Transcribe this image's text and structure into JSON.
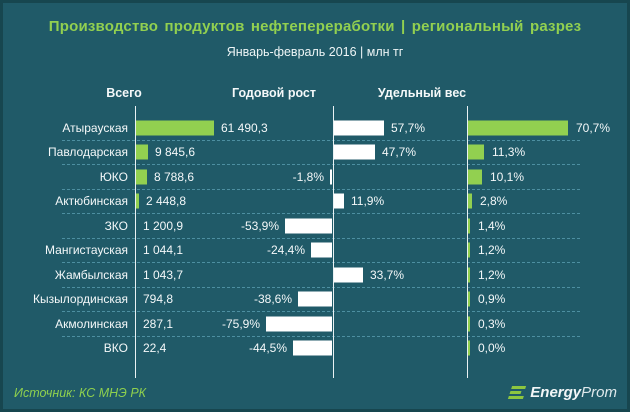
{
  "title": "Производство продуктов нефтепереработки | региональный разрез",
  "subtitle": "Январь-февраль 2016 | млн тг",
  "columns": {
    "total": "Всего",
    "growth": "Годовой рост",
    "share": "Удельный вес"
  },
  "regions": [
    {
      "name": "Атырауская",
      "total": "61 490,3",
      "total_value": 61490.3,
      "growth": "57,7%",
      "growth_value": 57.7,
      "share": "70,7%",
      "share_value": 70.7
    },
    {
      "name": "Павлодарская",
      "total": "9 845,6",
      "total_value": 9845.6,
      "growth": "47,7%",
      "growth_value": 47.7,
      "share": "11,3%",
      "share_value": 11.3
    },
    {
      "name": "ЮКО",
      "total": "8 788,6",
      "total_value": 8788.6,
      "growth": "-1,8%",
      "growth_value": -1.8,
      "share": "10,1%",
      "share_value": 10.1
    },
    {
      "name": "Актюбинская",
      "total": "2 448,8",
      "total_value": 2448.8,
      "growth": "11,9%",
      "growth_value": 11.9,
      "share": "2,8%",
      "share_value": 2.8
    },
    {
      "name": "ЗКО",
      "total": "1 200,9",
      "total_value": 1200.9,
      "growth": "-53,9%",
      "growth_value": -53.9,
      "share": "1,4%",
      "share_value": 1.4
    },
    {
      "name": "Мангистауская",
      "total": "1 044,1",
      "total_value": 1044.1,
      "growth": "-24,4%",
      "growth_value": -24.4,
      "share": "1,2%",
      "share_value": 1.2
    },
    {
      "name": "Жамбылская",
      "total": "1 043,7",
      "total_value": 1043.7,
      "growth": "33,7%",
      "growth_value": 33.7,
      "share": "1,2%",
      "share_value": 1.2
    },
    {
      "name": "Кызылординская",
      "total": "794,8",
      "total_value": 794.8,
      "growth": "-38,6%",
      "growth_value": -38.6,
      "share": "0,9%",
      "share_value": 0.9
    },
    {
      "name": "Акмолинская",
      "total": "287,1",
      "total_value": 287.1,
      "growth": "-75,9%",
      "growth_value": -75.9,
      "share": "0,3%",
      "share_value": 0.3
    },
    {
      "name": "ВКО",
      "total": "22,4",
      "total_value": 22.4,
      "growth": "-44,5%",
      "growth_value": -44.5,
      "share": "0,0%",
      "share_value": 0.0
    }
  ],
  "footer": {
    "source": "Источник: КС МНЭ РК",
    "logo_energy": "Energy",
    "logo_prom": "Prom"
  },
  "colors": {
    "background": "#205a68",
    "frame": "#17464f",
    "bar_green": "#92d050",
    "bar_white": "#ffffff",
    "title_green": "#92d050",
    "text": "#f4f8f9",
    "dashed_line": "#4d8fa1",
    "logo_green": "#8dc63f"
  },
  "chart_data": {
    "type": "bar",
    "orientation": "horizontal",
    "title": "Производство продуктов нефтепереработки | региональный разрез",
    "subtitle": "Январь-февраль 2016 | млн тг",
    "unit": "млн тг",
    "categories": [
      "Атырауская",
      "Павлодарская",
      "ЮКО",
      "Актюбинская",
      "ЗКО",
      "Мангистауская",
      "Жамбылская",
      "Кызылординская",
      "Акмолинская",
      "ВКО"
    ],
    "series": [
      {
        "name": "Всего",
        "unit": "млн тг",
        "values": [
          61490.3,
          9845.6,
          8788.6,
          2448.8,
          1200.9,
          1044.1,
          1043.7,
          794.8,
          287.1,
          22.4
        ]
      },
      {
        "name": "Годовой рост",
        "unit": "%",
        "values": [
          57.7,
          47.7,
          -1.8,
          11.9,
          -53.9,
          -24.4,
          33.7,
          -38.6,
          -75.9,
          -44.5
        ]
      },
      {
        "name": "Удельный вес",
        "unit": "%",
        "values": [
          70.7,
          11.3,
          10.1,
          2.8,
          1.4,
          1.2,
          1.2,
          0.9,
          0.3,
          0.0
        ]
      }
    ],
    "legend": false,
    "grid": "dashed-row-separators",
    "axis_ranges": {
      "Всего": [
        0,
        61490.3
      ],
      "Годовой рост": [
        -75.9,
        57.7
      ],
      "Удельный вес": [
        0,
        70.7
      ]
    },
    "source": "Источник: КС МНЭ РК"
  }
}
